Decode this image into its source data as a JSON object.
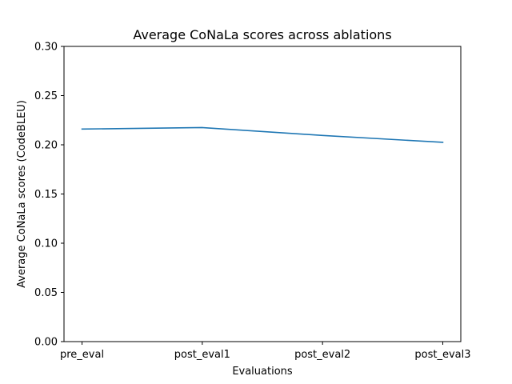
{
  "chart_data": {
    "type": "line",
    "title": "Average CoNaLa scores across ablations",
    "xlabel": "Evaluations",
    "ylabel": "Average CoNaLa scores (CodeBLEU)",
    "categories": [
      "pre_eval",
      "post_eval1",
      "post_eval2",
      "post_eval3"
    ],
    "series": [
      {
        "values": [
          0.216,
          0.2175,
          0.2095,
          0.2025
        ],
        "color": "#1f77b4"
      }
    ],
    "ylim": [
      0.0,
      0.3
    ],
    "yticks": [
      "0.00",
      "0.05",
      "0.10",
      "0.15",
      "0.20",
      "0.25",
      "0.30"
    ],
    "grid": false,
    "legend": "none"
  }
}
